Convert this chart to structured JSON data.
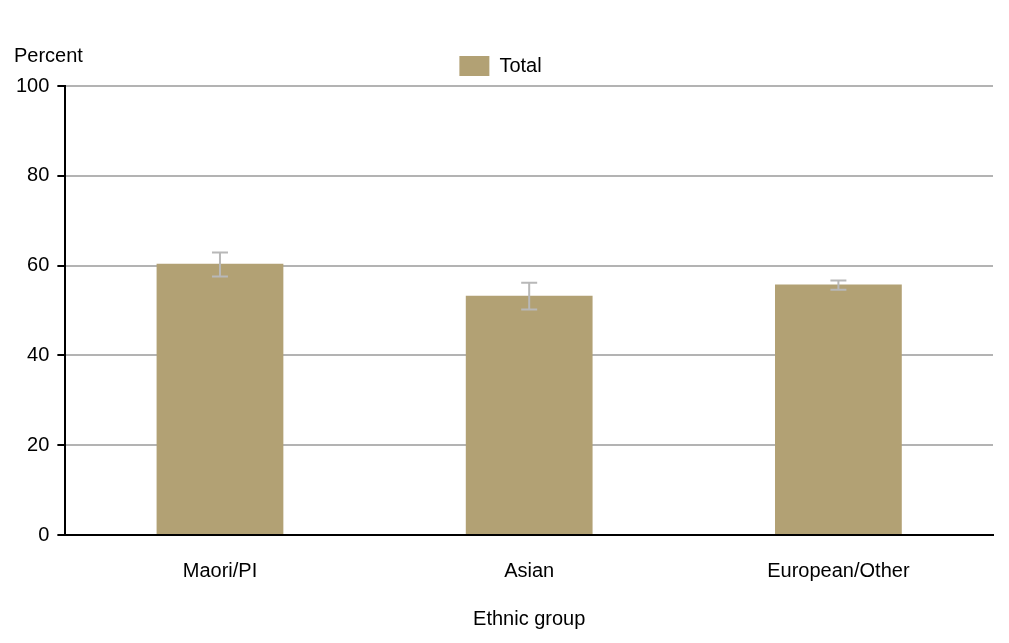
{
  "chart_data": {
    "type": "bar",
    "ylabel": "Percent",
    "xlabel": "Ethnic group",
    "categories": [
      "Maori/PI",
      "Asian",
      "European/Other"
    ],
    "series": [
      {
        "name": "Total",
        "color": "#b2a174",
        "values": [
          60.4,
          53.3,
          55.8
        ],
        "errors": [
          [
            57.6,
            62.9
          ],
          [
            50.2,
            56.2
          ],
          [
            54.6,
            56.7
          ]
        ]
      }
    ],
    "ylim": [
      0,
      100
    ],
    "yticks": [
      0,
      20,
      40,
      60,
      80,
      100
    ],
    "grid": "y",
    "legend": "top"
  }
}
